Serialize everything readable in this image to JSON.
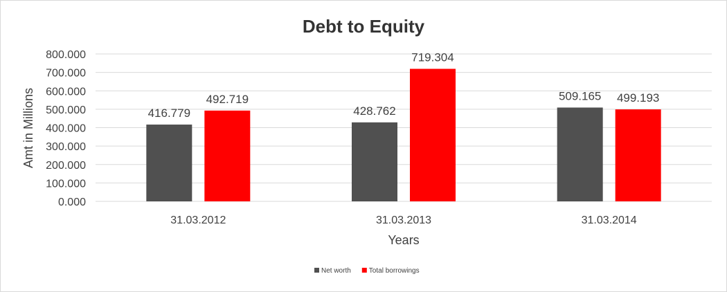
{
  "chart_data": {
    "type": "bar",
    "title": "Debt to Equity",
    "xlabel": "Years",
    "ylabel": "Amt in Millions",
    "categories": [
      "31.03.2012",
      "31.03.2013",
      "31.03.2014"
    ],
    "series": [
      {
        "name": "Net worth",
        "values": [
          416.779,
          428.762,
          509.165
        ],
        "labels": [
          "416.779",
          "428.762",
          "509.165"
        ],
        "color": "#505050"
      },
      {
        "name": "Total borrowings",
        "values": [
          492.719,
          719.304,
          499.193
        ],
        "labels": [
          "492.719",
          "719.304",
          "499.193"
        ],
        "color": "#ff0000"
      }
    ],
    "ylim": [
      0,
      800
    ],
    "yticks": [
      0,
      100,
      200,
      300,
      400,
      500,
      600,
      700,
      800
    ],
    "ytick_labels": [
      "0.000",
      "100.000",
      "200.000",
      "300.000",
      "400.000",
      "500.000",
      "600.000",
      "700.000",
      "800.000"
    ],
    "grid": true,
    "legend_position": "bottom"
  }
}
